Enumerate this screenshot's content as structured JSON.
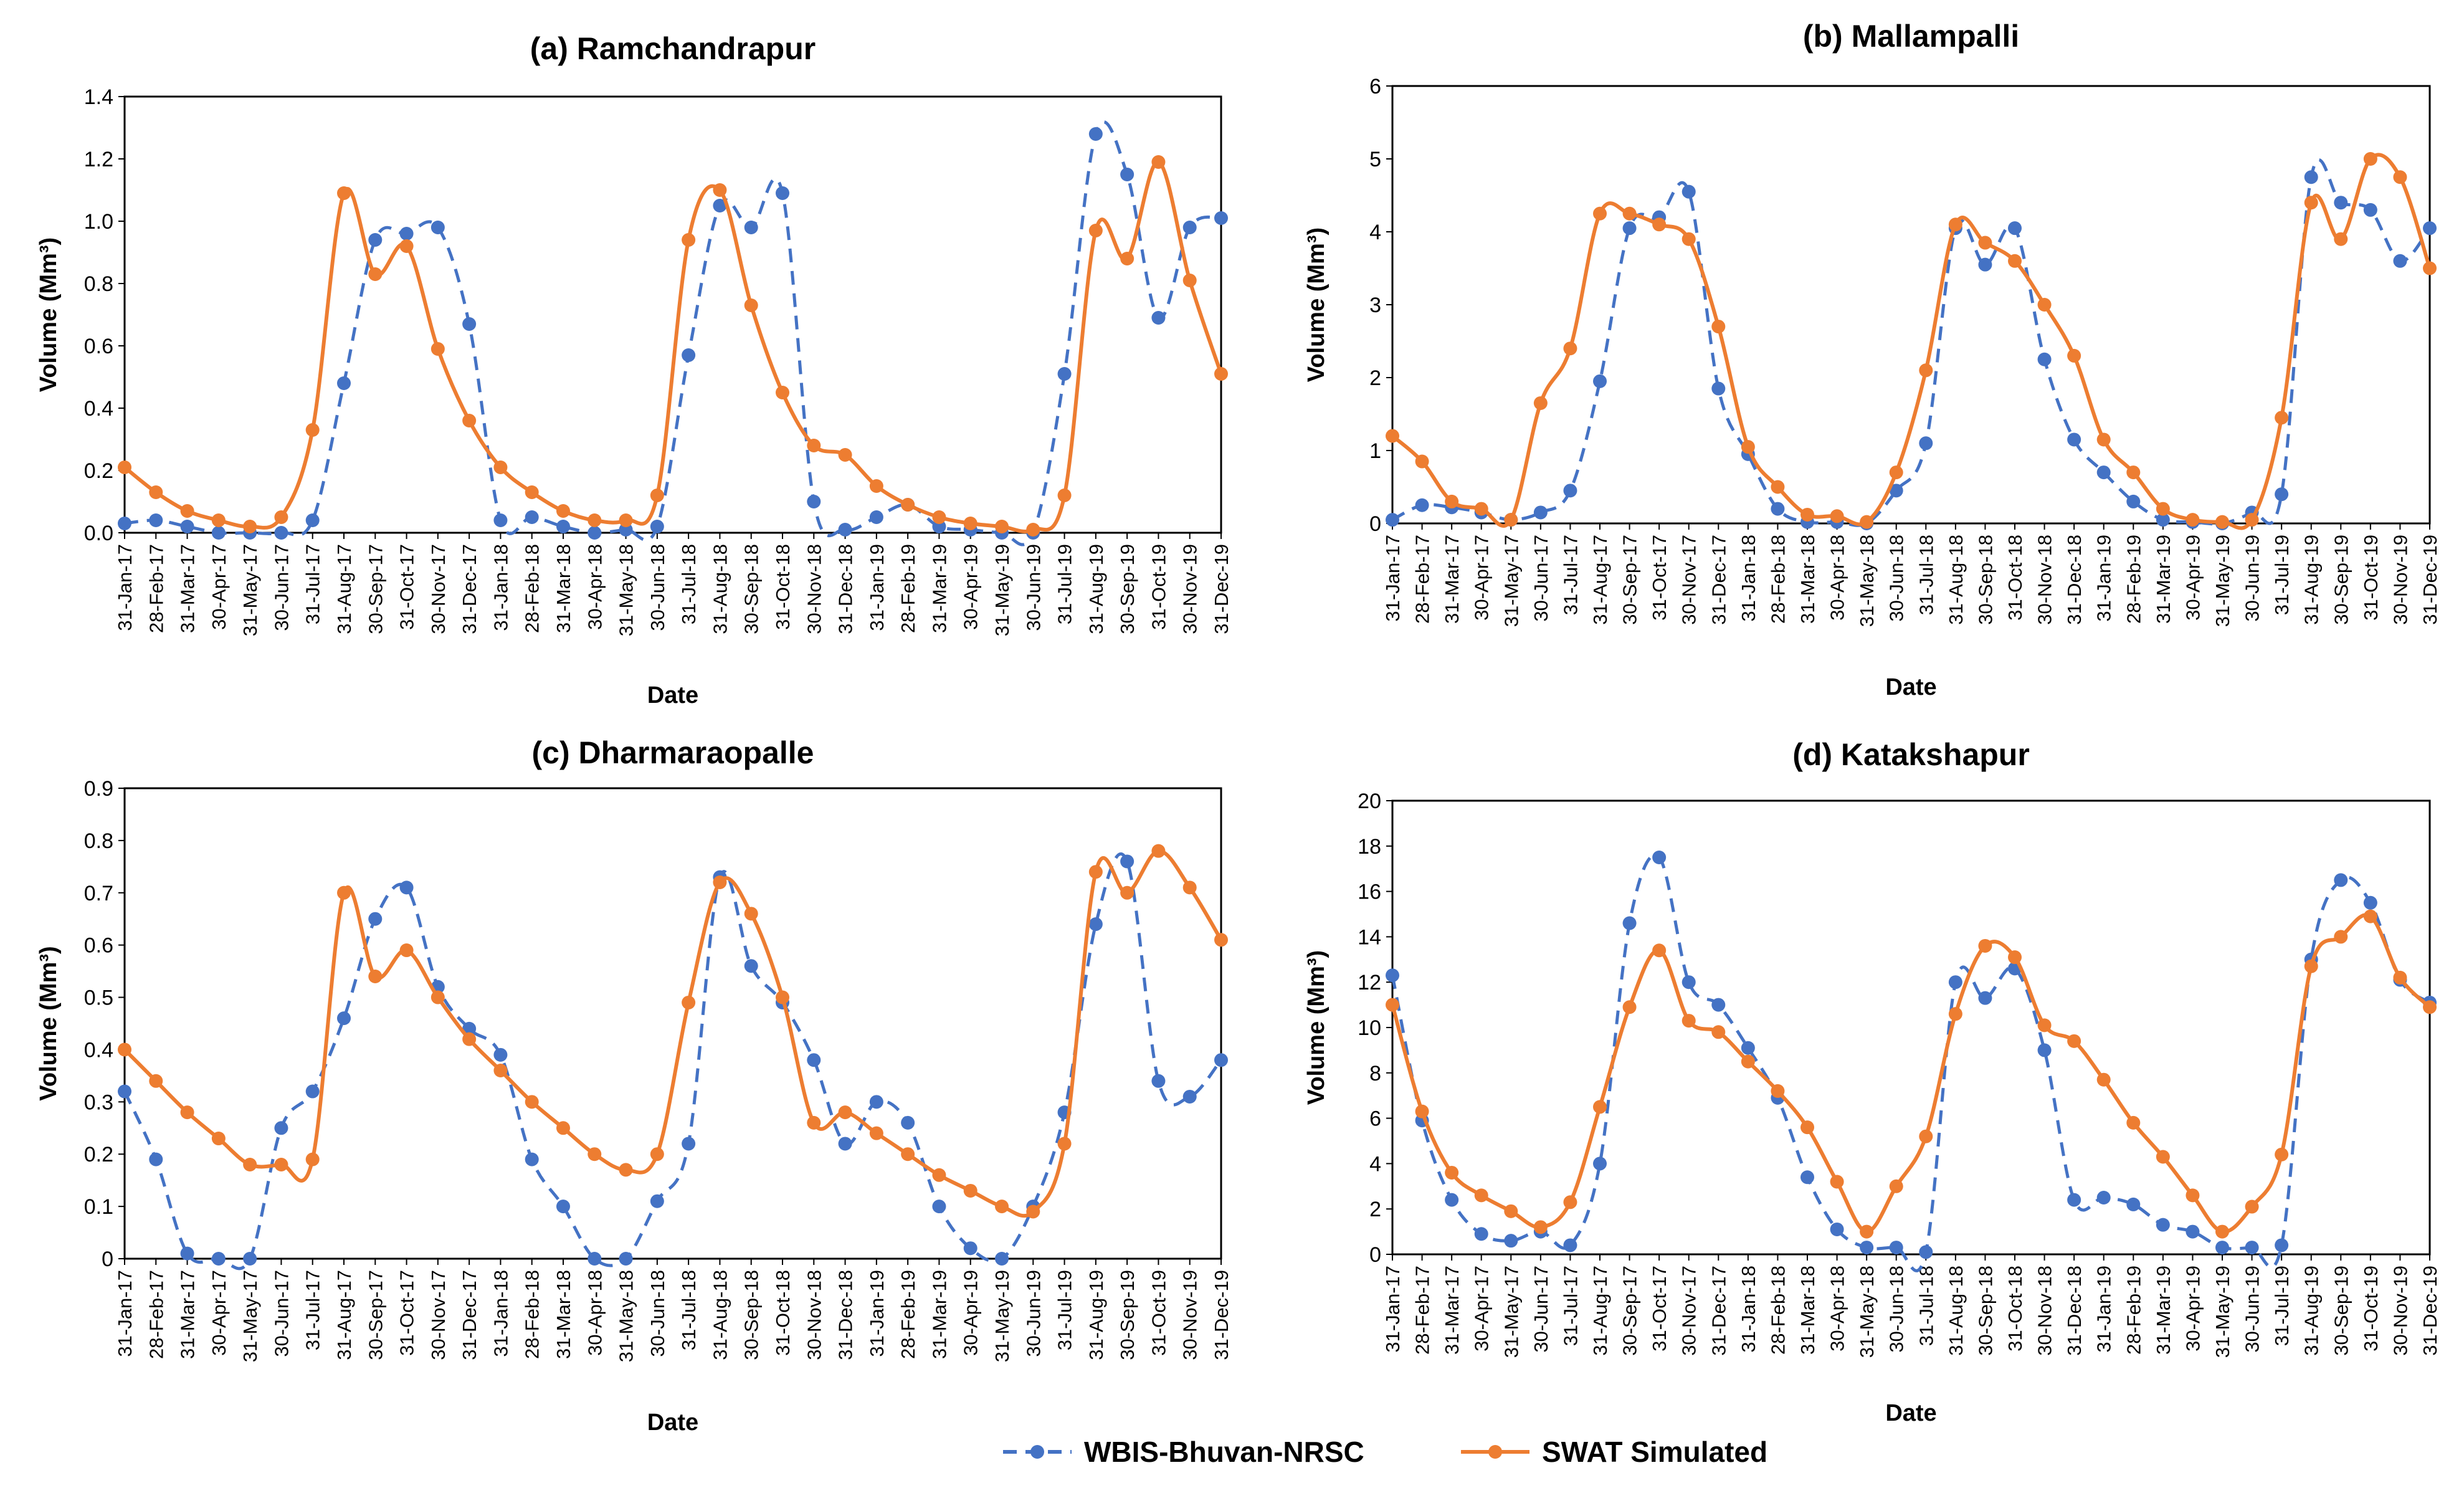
{
  "chart_data": [
    {
      "type": "line",
      "title": "(a) Ramchandrapur",
      "xlabel": "Date",
      "ylabel": "Volume (Mm³)",
      "ylim": [
        0,
        1.4
      ],
      "yticks": [
        "0.0",
        "0.2",
        "0.4",
        "0.6",
        "0.8",
        "1.0",
        "1.2",
        "1.4"
      ],
      "categories": [
        "31-Jan-17",
        "28-Feb-17",
        "31-Mar-17",
        "30-Apr-17",
        "31-May-17",
        "30-Jun-17",
        "31-Jul-17",
        "31-Aug-17",
        "30-Sep-17",
        "31-Oct-17",
        "30-Nov-17",
        "31-Dec-17",
        "31-Jan-18",
        "28-Feb-18",
        "31-Mar-18",
        "30-Apr-18",
        "31-May-18",
        "30-Jun-18",
        "31-Jul-18",
        "31-Aug-18",
        "30-Sep-18",
        "31-Oct-18",
        "30-Nov-18",
        "31-Dec-18",
        "31-Jan-19",
        "28-Feb-19",
        "31-Mar-19",
        "30-Apr-19",
        "31-May-19",
        "30-Jun-19",
        "31-Jul-19",
        "31-Aug-19",
        "30-Sep-19",
        "31-Oct-19",
        "30-Nov-19",
        "31-Dec-19"
      ],
      "series": [
        {
          "name": "WBIS-Bhuvan-NRSC",
          "values": [
            0.03,
            0.04,
            0.02,
            0.0,
            0.0,
            0.0,
            0.04,
            0.48,
            0.94,
            0.96,
            0.98,
            0.67,
            0.04,
            0.05,
            0.02,
            0.0,
            0.01,
            0.02,
            0.57,
            1.05,
            0.98,
            1.09,
            0.1,
            0.01,
            0.05,
            0.09,
            0.02,
            0.01,
            0.0,
            0.0,
            0.51,
            1.28,
            1.15,
            0.69,
            0.98,
            1.01
          ]
        },
        {
          "name": "SWAT Simulated",
          "values": [
            0.21,
            0.13,
            0.07,
            0.04,
            0.02,
            0.05,
            0.33,
            1.09,
            0.83,
            0.92,
            0.59,
            0.36,
            0.21,
            0.13,
            0.07,
            0.04,
            0.04,
            0.12,
            0.94,
            1.1,
            0.73,
            0.45,
            0.28,
            0.25,
            0.15,
            0.09,
            0.05,
            0.03,
            0.02,
            0.01,
            0.12,
            0.97,
            0.88,
            1.19,
            0.81,
            0.51
          ]
        }
      ]
    },
    {
      "type": "line",
      "title": "(b) Mallampalli",
      "xlabel": "Date",
      "ylabel": "Volume (Mm³)",
      "ylim": [
        0,
        6
      ],
      "yticks": [
        "0",
        "1",
        "2",
        "3",
        "4",
        "5",
        "6"
      ],
      "categories": [
        "31-Jan-17",
        "28-Feb-17",
        "31-Mar-17",
        "30-Apr-17",
        "31-May-17",
        "30-Jun-17",
        "31-Jul-17",
        "31-Aug-17",
        "30-Sep-17",
        "31-Oct-17",
        "30-Nov-17",
        "31-Dec-17",
        "31-Jan-18",
        "28-Feb-18",
        "31-Mar-18",
        "30-Apr-18",
        "31-May-18",
        "30-Jun-18",
        "31-Jul-18",
        "31-Aug-18",
        "30-Sep-18",
        "31-Oct-18",
        "30-Nov-18",
        "31-Dec-18",
        "31-Jan-19",
        "28-Feb-19",
        "31-Mar-19",
        "30-Apr-19",
        "31-May-19",
        "30-Jun-19",
        "31-Jul-19",
        "31-Aug-19",
        "30-Sep-19",
        "31-Oct-19",
        "30-Nov-19",
        "31-Dec-19"
      ],
      "series": [
        {
          "name": "WBIS-Bhuvan-NRSC",
          "values": [
            0.05,
            0.25,
            0.22,
            0.15,
            0.05,
            0.15,
            0.45,
            1.95,
            4.05,
            4.2,
            4.55,
            1.85,
            0.95,
            0.2,
            0.02,
            0.02,
            0.0,
            0.45,
            1.1,
            4.05,
            3.55,
            4.05,
            2.25,
            1.15,
            0.7,
            0.3,
            0.05,
            0.02,
            0.0,
            0.15,
            0.4,
            4.75,
            4.4,
            4.3,
            3.6,
            4.05
          ]
        },
        {
          "name": "SWAT Simulated",
          "values": [
            1.2,
            0.85,
            0.3,
            0.2,
            0.05,
            1.65,
            2.4,
            4.25,
            4.25,
            4.1,
            3.9,
            2.7,
            1.05,
            0.5,
            0.12,
            0.1,
            0.02,
            0.7,
            2.1,
            4.1,
            3.85,
            3.6,
            3.0,
            2.3,
            1.15,
            0.7,
            0.2,
            0.05,
            0.02,
            0.05,
            1.45,
            4.4,
            3.9,
            5.0,
            4.75,
            3.5
          ]
        }
      ]
    },
    {
      "type": "line",
      "title": "(c) Dharmaraopalle",
      "xlabel": "Date",
      "ylabel": "Volume (Mm³)",
      "ylim": [
        0,
        0.9
      ],
      "yticks": [
        "0",
        "0.1",
        "0.2",
        "0.3",
        "0.4",
        "0.5",
        "0.6",
        "0.7",
        "0.8",
        "0.9"
      ],
      "categories": [
        "31-Jan-17",
        "28-Feb-17",
        "31-Mar-17",
        "30-Apr-17",
        "31-May-17",
        "30-Jun-17",
        "31-Jul-17",
        "31-Aug-17",
        "30-Sep-17",
        "31-Oct-17",
        "30-Nov-17",
        "31-Dec-17",
        "31-Jan-18",
        "28-Feb-18",
        "31-Mar-18",
        "30-Apr-18",
        "31-May-18",
        "30-Jun-18",
        "31-Jul-18",
        "31-Aug-18",
        "30-Sep-18",
        "31-Oct-18",
        "30-Nov-18",
        "31-Dec-18",
        "31-Jan-19",
        "28-Feb-19",
        "31-Mar-19",
        "30-Apr-19",
        "31-May-19",
        "30-Jun-19",
        "31-Jul-19",
        "31-Aug-19",
        "30-Sep-19",
        "31-Oct-19",
        "30-Nov-19",
        "31-Dec-19"
      ],
      "series": [
        {
          "name": "WBIS-Bhuvan-NRSC",
          "values": [
            0.32,
            0.19,
            0.01,
            0.0,
            0.0,
            0.25,
            0.32,
            0.46,
            0.65,
            0.71,
            0.52,
            0.44,
            0.39,
            0.19,
            0.1,
            0.0,
            0.0,
            0.11,
            0.22,
            0.73,
            0.56,
            0.49,
            0.38,
            0.22,
            0.3,
            0.26,
            0.1,
            0.02,
            0.0,
            0.1,
            0.28,
            0.64,
            0.76,
            0.34,
            0.31,
            0.38
          ]
        },
        {
          "name": "SWAT Simulated",
          "values": [
            0.4,
            0.34,
            0.28,
            0.23,
            0.18,
            0.18,
            0.19,
            0.7,
            0.54,
            0.59,
            0.5,
            0.42,
            0.36,
            0.3,
            0.25,
            0.2,
            0.17,
            0.2,
            0.49,
            0.72,
            0.66,
            0.5,
            0.26,
            0.28,
            0.24,
            0.2,
            0.16,
            0.13,
            0.1,
            0.09,
            0.22,
            0.74,
            0.7,
            0.78,
            0.71,
            0.61
          ]
        }
      ]
    },
    {
      "type": "line",
      "title": "(d) Katakshapur",
      "xlabel": "Date",
      "ylabel": "Volume (Mm³)",
      "ylim": [
        0,
        20
      ],
      "yticks": [
        "0",
        "2",
        "4",
        "6",
        "8",
        "10",
        "12",
        "14",
        "16",
        "18",
        "20"
      ],
      "categories": [
        "31-Jan-17",
        "28-Feb-17",
        "31-Mar-17",
        "30-Apr-17",
        "31-May-17",
        "30-Jun-17",
        "31-Jul-17",
        "31-Aug-17",
        "30-Sep-17",
        "31-Oct-17",
        "30-Nov-17",
        "31-Dec-17",
        "31-Jan-18",
        "28-Feb-18",
        "31-Mar-18",
        "30-Apr-18",
        "31-May-18",
        "30-Jun-18",
        "31-Jul-18",
        "31-Aug-18",
        "30-Sep-18",
        "31-Oct-18",
        "30-Nov-18",
        "31-Dec-18",
        "31-Jan-19",
        "28-Feb-19",
        "31-Mar-19",
        "30-Apr-19",
        "31-May-19",
        "30-Jun-19",
        "31-Jul-19",
        "31-Aug-19",
        "30-Sep-19",
        "31-Oct-19",
        "30-Nov-19",
        "31-Dec-19"
      ],
      "series": [
        {
          "name": "WBIS-Bhuvan-NRSC",
          "values": [
            12.3,
            5.9,
            2.4,
            0.9,
            0.6,
            1.0,
            0.4,
            4.0,
            14.6,
            17.5,
            12.0,
            11.0,
            9.1,
            6.9,
            3.4,
            1.1,
            0.3,
            0.3,
            0.1,
            12.0,
            11.3,
            12.6,
            9.0,
            2.4,
            2.5,
            2.2,
            1.3,
            1.0,
            0.3,
            0.3,
            0.4,
            13.0,
            16.5,
            15.5,
            12.1,
            11.1
          ]
        },
        {
          "name": "SWAT Simulated",
          "values": [
            11.0,
            6.3,
            3.6,
            2.6,
            1.9,
            1.2,
            2.3,
            6.5,
            10.9,
            13.4,
            10.3,
            9.8,
            8.5,
            7.2,
            5.6,
            3.2,
            1.0,
            3.0,
            5.2,
            10.6,
            13.6,
            13.1,
            10.1,
            9.4,
            7.7,
            5.8,
            4.3,
            2.6,
            1.0,
            2.1,
            4.4,
            12.7,
            14.0,
            14.9,
            12.2,
            10.9
          ]
        }
      ]
    }
  ],
  "legend": {
    "items": [
      {
        "label": "WBIS-Bhuvan-NRSC",
        "color": "#4472C4",
        "style": "dashed-with-markers"
      },
      {
        "label": "SWAT Simulated",
        "color": "#ED7D31",
        "style": "solid-with-markers"
      }
    ]
  },
  "colors": {
    "observed": "#4472C4",
    "simulated": "#ED7D31",
    "axis": "#000000"
  }
}
